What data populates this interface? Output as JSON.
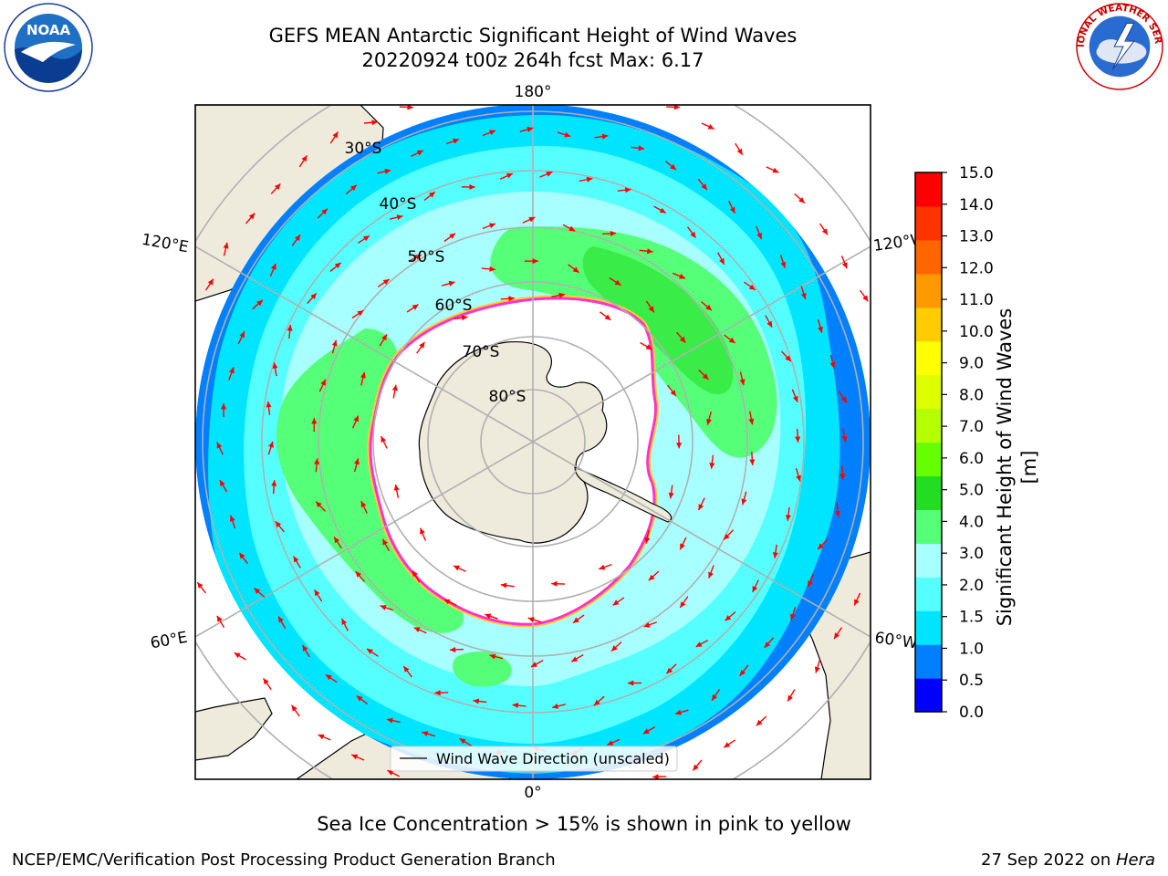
{
  "header": {
    "title_line1": "GEFS MEAN Antarctic Significant Height of Wind Waves",
    "title_line2": "20220924 t00z 264h fcst   Max: 6.17"
  },
  "logos": {
    "left": {
      "text": "NOAA",
      "ring_text": "NATIONAL OCEANIC AND ATMOSPHERIC ADMINISTRATION · U.S. DEPARTMENT OF COMMERCE"
    },
    "right": {
      "ring_text": "NATIONAL WEATHER SERVICE"
    }
  },
  "map": {
    "longitude_labels": {
      "top": "180°",
      "bottom": "0°",
      "upper_left": "120°E",
      "upper_right": "120°W",
      "lower_left": "60°E",
      "lower_right": "60°W"
    },
    "latitude_labels": [
      "30°S",
      "40°S",
      "50°S",
      "60°S",
      "70°S",
      "80°S"
    ],
    "legend_text": "Wind Wave Direction (unscaled)",
    "colors": {
      "land": "#efebdc",
      "ice_edge_pink": "#ff33cc",
      "ice_edge_yellow": "#ffcc33",
      "arrow": "#ff0000",
      "grid": "#b0b0b0"
    }
  },
  "colorbar": {
    "label": "Significant Height of Wind Waves [m]",
    "ticks": [
      "0.0",
      "0.5",
      "1.0",
      "1.5",
      "2.0",
      "3.0",
      "4.0",
      "5.0",
      "6.0",
      "7.0",
      "8.0",
      "9.0",
      "10.0",
      "11.0",
      "12.0",
      "13.0",
      "14.0",
      "15.0"
    ],
    "colors": [
      "#0000ff",
      "#0080ff",
      "#00e5ff",
      "#55ffff",
      "#a8ffff",
      "#55ff77",
      "#22dd22",
      "#66ff00",
      "#b4ff00",
      "#ddff00",
      "#ffff00",
      "#ffcc00",
      "#ff9900",
      "#ff6600",
      "#ff3300",
      "#ff0000"
    ]
  },
  "footer": {
    "note": "Sea Ice Concentration > 15% is shown in pink to yellow",
    "branch": "NCEP/EMC/Verification Post Processing Product Generation Branch",
    "date": "27 Sep 2022 on ",
    "system": "Hera"
  }
}
